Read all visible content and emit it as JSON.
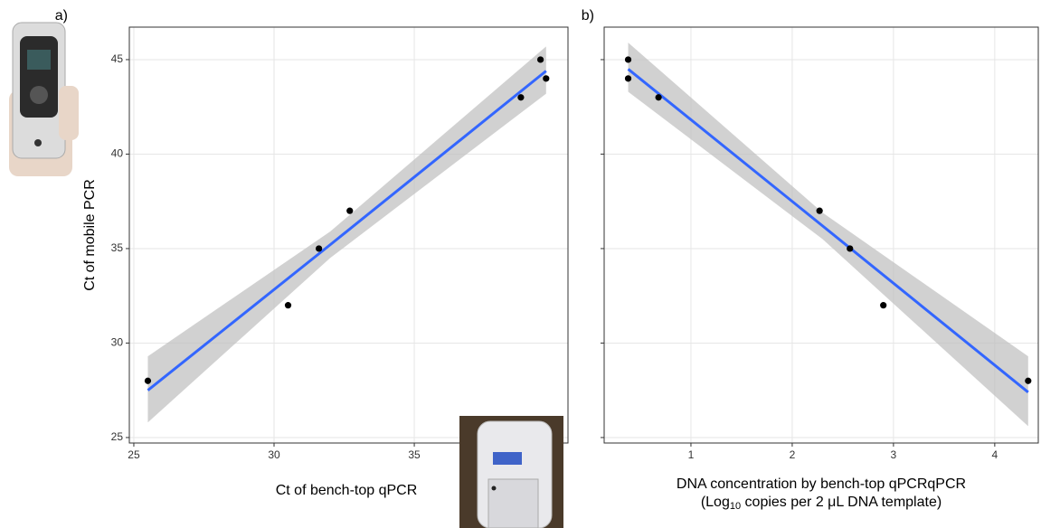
{
  "chart_data": [
    {
      "type": "scatter",
      "panel": "a)",
      "x_label": "Ct of bench-top qPCR",
      "y_label": "Ct of mobile PCR",
      "x": [
        25.5,
        30.5,
        31.6,
        32.7,
        38.8,
        39.5,
        39.7
      ],
      "y": [
        28,
        32,
        35,
        37,
        43,
        45,
        44
      ],
      "color": "#000000",
      "fit": {
        "x": [
          25.5,
          32,
          39.7
        ],
        "y": [
          27.5,
          35.2,
          44.4
        ],
        "lower": [
          25.8,
          34.5,
          43.2
        ],
        "upper": [
          29.3,
          35.9,
          45.7
        ],
        "color": "#3366ff",
        "band_color": "#bdbdbd"
      },
      "xlim": [
        24.84,
        40.48
      ],
      "ylim": [
        24.71,
        46.72
      ],
      "xticks": [
        25,
        30,
        35
      ],
      "yticks": [
        25,
        30,
        35,
        40,
        45
      ],
      "y_tick_labels": true,
      "grid": true
    },
    {
      "type": "scatter",
      "panel": "b)",
      "x_label_lines": [
        "DNA concentration by bench-top qPCRqPCR",
        [
          "(Log",
          "10",
          " copies per 2 μL DNA template)"
        ]
      ],
      "x": [
        0.38,
        0.38,
        0.68,
        2.27,
        2.57,
        2.9,
        4.33
      ],
      "y": [
        45,
        44,
        43,
        37,
        35,
        32,
        28
      ],
      "color": "#000000",
      "fit": {
        "x": [
          0.38,
          2.3,
          4.33
        ],
        "y": [
          44.5,
          36.2,
          27.4
        ],
        "lower": [
          43.3,
          35.5,
          25.6
        ],
        "upper": [
          45.9,
          36.9,
          29.3
        ],
        "color": "#3366ff",
        "band_color": "#bdbdbd"
      },
      "xlim": [
        0.143,
        4.43
      ],
      "ylim": [
        24.71,
        46.72
      ],
      "xticks": [
        1,
        2,
        3,
        4
      ],
      "yticks": [
        25,
        30,
        35,
        40,
        45
      ],
      "y_tick_labels": false,
      "grid": true
    }
  ]
}
